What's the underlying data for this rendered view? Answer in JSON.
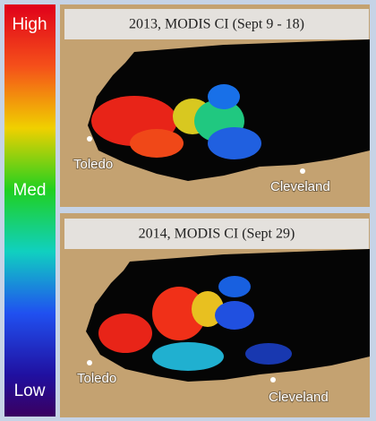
{
  "colorbar": {
    "labels": [
      "High",
      "Med",
      "Low"
    ]
  },
  "panels": [
    {
      "title": "2013, MODIS CI  (Sept 9 - 18)",
      "cities": [
        "Toledo",
        "Cleveland"
      ]
    },
    {
      "title": "2014, MODIS CI  (Sept 29)",
      "cities": [
        "Toledo",
        "Cleveland"
      ]
    }
  ]
}
